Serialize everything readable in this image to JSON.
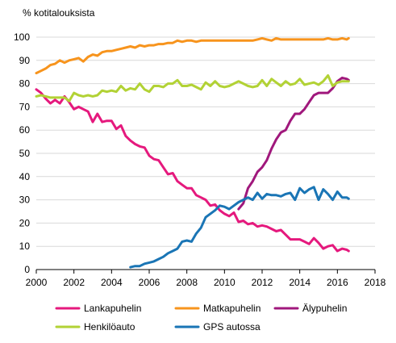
{
  "chart_data": {
    "type": "line",
    "title": "",
    "ylabel": "% kotitalouksista",
    "xlabel": "",
    "xlim": [
      2000,
      2018
    ],
    "ylim": [
      0,
      100
    ],
    "x_ticks": [
      2000,
      2002,
      2004,
      2006,
      2008,
      2010,
      2012,
      2014,
      2016,
      2018
    ],
    "y_ticks": [
      0,
      10,
      20,
      30,
      40,
      50,
      60,
      70,
      80,
      90,
      100
    ],
    "grid": "horizontal",
    "legend_position": "bottom",
    "series": [
      {
        "name": "Lankapuhelin",
        "color": "#e5197d",
        "points": [
          [
            2000.0,
            77.5
          ],
          [
            2000.25,
            76
          ],
          [
            2000.5,
            73.5
          ],
          [
            2000.75,
            71.5
          ],
          [
            2001.0,
            73
          ],
          [
            2001.25,
            71.5
          ],
          [
            2001.5,
            74.5
          ],
          [
            2001.75,
            72
          ],
          [
            2002.0,
            69
          ],
          [
            2002.25,
            70
          ],
          [
            2002.5,
            69
          ],
          [
            2002.75,
            68
          ],
          [
            2003.0,
            63.5
          ],
          [
            2003.25,
            67
          ],
          [
            2003.5,
            63.5
          ],
          [
            2003.75,
            64
          ],
          [
            2004.0,
            64
          ],
          [
            2004.25,
            60.5
          ],
          [
            2004.5,
            62
          ],
          [
            2004.75,
            57.5
          ],
          [
            2005.0,
            55.5
          ],
          [
            2005.25,
            54
          ],
          [
            2005.5,
            53
          ],
          [
            2005.75,
            52.5
          ],
          [
            2006.0,
            49
          ],
          [
            2006.25,
            47.5
          ],
          [
            2006.5,
            47
          ],
          [
            2006.75,
            44
          ],
          [
            2007.0,
            41
          ],
          [
            2007.25,
            41.5
          ],
          [
            2007.5,
            38
          ],
          [
            2007.75,
            36.5
          ],
          [
            2008.0,
            35
          ],
          [
            2008.25,
            35
          ],
          [
            2008.5,
            32
          ],
          [
            2008.75,
            31
          ],
          [
            2009.0,
            30
          ],
          [
            2009.25,
            27.5
          ],
          [
            2009.5,
            28
          ],
          [
            2009.75,
            25.5
          ],
          [
            2010.0,
            24
          ],
          [
            2010.25,
            23
          ],
          [
            2010.5,
            24.5
          ],
          [
            2010.75,
            20.5
          ],
          [
            2011.0,
            21
          ],
          [
            2011.25,
            19.5
          ],
          [
            2011.5,
            20
          ],
          [
            2011.75,
            18.5
          ],
          [
            2012.0,
            19
          ],
          [
            2012.25,
            18.5
          ],
          [
            2012.5,
            17.5
          ],
          [
            2012.75,
            16.5
          ],
          [
            2013.0,
            17
          ],
          [
            2013.25,
            15
          ],
          [
            2013.5,
            13
          ],
          [
            2013.75,
            13
          ],
          [
            2014.0,
            13
          ],
          [
            2014.25,
            12
          ],
          [
            2014.5,
            11
          ],
          [
            2014.75,
            13.5
          ],
          [
            2015.0,
            11.5
          ],
          [
            2015.25,
            9
          ],
          [
            2015.5,
            10
          ],
          [
            2015.75,
            10.5
          ],
          [
            2016.0,
            8
          ],
          [
            2016.25,
            9
          ],
          [
            2016.5,
            8.5
          ],
          [
            2016.6,
            8
          ]
        ]
      },
      {
        "name": "Matkapuhelin",
        "color": "#f7941d",
        "points": [
          [
            2000.0,
            84.5
          ],
          [
            2000.25,
            85.5
          ],
          [
            2000.5,
            86.5
          ],
          [
            2000.75,
            88
          ],
          [
            2001.0,
            88.5
          ],
          [
            2001.25,
            90
          ],
          [
            2001.5,
            89
          ],
          [
            2001.75,
            90
          ],
          [
            2002.0,
            90.5
          ],
          [
            2002.25,
            91
          ],
          [
            2002.5,
            89.5
          ],
          [
            2002.75,
            91.5
          ],
          [
            2003.0,
            92.5
          ],
          [
            2003.25,
            92
          ],
          [
            2003.5,
            93.5
          ],
          [
            2003.75,
            94
          ],
          [
            2004.0,
            94
          ],
          [
            2004.25,
            94.5
          ],
          [
            2004.5,
            95
          ],
          [
            2004.75,
            95.5
          ],
          [
            2005.0,
            96
          ],
          [
            2005.25,
            95.5
          ],
          [
            2005.5,
            96.5
          ],
          [
            2005.75,
            96
          ],
          [
            2006.0,
            96.5
          ],
          [
            2006.25,
            96.5
          ],
          [
            2006.5,
            97
          ],
          [
            2006.75,
            97
          ],
          [
            2007.0,
            97.5
          ],
          [
            2007.25,
            97.5
          ],
          [
            2007.5,
            98.5
          ],
          [
            2007.75,
            98
          ],
          [
            2008.0,
            98.5
          ],
          [
            2008.25,
            98.5
          ],
          [
            2008.5,
            98
          ],
          [
            2008.75,
            98.5
          ],
          [
            2009.0,
            98.5
          ],
          [
            2009.25,
            98.5
          ],
          [
            2009.5,
            98.5
          ],
          [
            2009.75,
            98.5
          ],
          [
            2010.0,
            98.5
          ],
          [
            2010.25,
            98.5
          ],
          [
            2010.5,
            98.5
          ],
          [
            2010.75,
            98.5
          ],
          [
            2011.0,
            98.5
          ],
          [
            2011.25,
            98.5
          ],
          [
            2011.5,
            98.5
          ],
          [
            2011.75,
            99
          ],
          [
            2012.0,
            99.5
          ],
          [
            2012.25,
            99
          ],
          [
            2012.5,
            98.5
          ],
          [
            2012.75,
            99.5
          ],
          [
            2013.0,
            99
          ],
          [
            2013.25,
            99
          ],
          [
            2013.5,
            99
          ],
          [
            2013.75,
            99
          ],
          [
            2014.0,
            99
          ],
          [
            2014.25,
            99
          ],
          [
            2014.5,
            99
          ],
          [
            2014.75,
            99
          ],
          [
            2015.0,
            99
          ],
          [
            2015.25,
            99
          ],
          [
            2015.5,
            99.5
          ],
          [
            2015.75,
            99
          ],
          [
            2016.0,
            99
          ],
          [
            2016.25,
            99.5
          ],
          [
            2016.5,
            99
          ],
          [
            2016.6,
            99.5
          ]
        ]
      },
      {
        "name": "Älypuhelin",
        "color": "#a0187c",
        "points": [
          [
            2010.75,
            26
          ],
          [
            2011.0,
            28.5
          ],
          [
            2011.25,
            35
          ],
          [
            2011.5,
            38
          ],
          [
            2011.75,
            42
          ],
          [
            2012.0,
            44
          ],
          [
            2012.25,
            47
          ],
          [
            2012.5,
            52
          ],
          [
            2012.75,
            56
          ],
          [
            2013.0,
            59
          ],
          [
            2013.25,
            60
          ],
          [
            2013.5,
            64
          ],
          [
            2013.75,
            67
          ],
          [
            2014.0,
            67
          ],
          [
            2014.25,
            69
          ],
          [
            2014.5,
            72
          ],
          [
            2014.75,
            75
          ],
          [
            2015.0,
            76
          ],
          [
            2015.25,
            76
          ],
          [
            2015.5,
            76
          ],
          [
            2015.75,
            78
          ],
          [
            2016.0,
            81
          ],
          [
            2016.25,
            82.5
          ],
          [
            2016.5,
            82
          ],
          [
            2016.6,
            81.5
          ]
        ]
      },
      {
        "name": "Henkilöauto",
        "color": "#b2d235",
        "points": [
          [
            2000.0,
            74.5
          ],
          [
            2000.25,
            75
          ],
          [
            2000.5,
            74.5
          ],
          [
            2000.75,
            74
          ],
          [
            2001.0,
            74
          ],
          [
            2001.25,
            74
          ],
          [
            2001.5,
            74
          ],
          [
            2001.75,
            72.5
          ],
          [
            2002.0,
            76
          ],
          [
            2002.25,
            75
          ],
          [
            2002.5,
            74.5
          ],
          [
            2002.75,
            75
          ],
          [
            2003.0,
            74.5
          ],
          [
            2003.25,
            75
          ],
          [
            2003.5,
            77
          ],
          [
            2003.75,
            76.5
          ],
          [
            2004.0,
            77
          ],
          [
            2004.25,
            76.5
          ],
          [
            2004.5,
            79
          ],
          [
            2004.75,
            77
          ],
          [
            2005.0,
            78
          ],
          [
            2005.25,
            77.5
          ],
          [
            2005.5,
            80
          ],
          [
            2005.75,
            77.5
          ],
          [
            2006.0,
            76.5
          ],
          [
            2006.25,
            79
          ],
          [
            2006.5,
            79
          ],
          [
            2006.75,
            78.5
          ],
          [
            2007.0,
            80
          ],
          [
            2007.25,
            80
          ],
          [
            2007.5,
            81.5
          ],
          [
            2007.75,
            79
          ],
          [
            2008.0,
            79
          ],
          [
            2008.25,
            79.5
          ],
          [
            2008.5,
            78.5
          ],
          [
            2008.75,
            77.5
          ],
          [
            2009.0,
            80.5
          ],
          [
            2009.25,
            79
          ],
          [
            2009.5,
            81
          ],
          [
            2009.75,
            79
          ],
          [
            2010.0,
            78.5
          ],
          [
            2010.25,
            79
          ],
          [
            2010.5,
            80
          ],
          [
            2010.75,
            81
          ],
          [
            2011.0,
            80
          ],
          [
            2011.25,
            79
          ],
          [
            2011.5,
            78.5
          ],
          [
            2011.75,
            79
          ],
          [
            2012.0,
            81.5
          ],
          [
            2012.25,
            79
          ],
          [
            2012.5,
            82
          ],
          [
            2012.75,
            80.5
          ],
          [
            2013.0,
            79
          ],
          [
            2013.25,
            81
          ],
          [
            2013.5,
            79.5
          ],
          [
            2013.75,
            80
          ],
          [
            2014.0,
            82
          ],
          [
            2014.25,
            79.5
          ],
          [
            2014.5,
            80
          ],
          [
            2014.75,
            80.5
          ],
          [
            2015.0,
            79.5
          ],
          [
            2015.25,
            81
          ],
          [
            2015.5,
            83.5
          ],
          [
            2015.75,
            79
          ],
          [
            2016.0,
            80.5
          ],
          [
            2016.25,
            81
          ],
          [
            2016.5,
            81
          ],
          [
            2016.6,
            81
          ]
        ]
      },
      {
        "name": "GPS autossa",
        "color": "#1a75b5",
        "points": [
          [
            2005.0,
            1
          ],
          [
            2005.25,
            1.5
          ],
          [
            2005.5,
            1.5
          ],
          [
            2005.75,
            2.5
          ],
          [
            2006.0,
            3
          ],
          [
            2006.25,
            3.5
          ],
          [
            2006.5,
            4.5
          ],
          [
            2006.75,
            5.5
          ],
          [
            2007.0,
            7
          ],
          [
            2007.25,
            8
          ],
          [
            2007.5,
            9
          ],
          [
            2007.75,
            12
          ],
          [
            2008.0,
            12.5
          ],
          [
            2008.25,
            12
          ],
          [
            2008.5,
            15.5
          ],
          [
            2008.75,
            18
          ],
          [
            2009.0,
            22.5
          ],
          [
            2009.25,
            24
          ],
          [
            2009.5,
            25.5
          ],
          [
            2009.75,
            27.5
          ],
          [
            2010.0,
            27
          ],
          [
            2010.25,
            26
          ],
          [
            2010.5,
            27.5
          ],
          [
            2010.75,
            29
          ],
          [
            2011.0,
            30
          ],
          [
            2011.25,
            31
          ],
          [
            2011.5,
            30
          ],
          [
            2011.75,
            33
          ],
          [
            2012.0,
            30.5
          ],
          [
            2012.25,
            32.5
          ],
          [
            2012.5,
            32
          ],
          [
            2012.75,
            32
          ],
          [
            2013.0,
            31.5
          ],
          [
            2013.25,
            32.5
          ],
          [
            2013.5,
            33
          ],
          [
            2013.75,
            30
          ],
          [
            2014.0,
            35
          ],
          [
            2014.25,
            33
          ],
          [
            2014.5,
            34.5
          ],
          [
            2014.75,
            35.5
          ],
          [
            2015.0,
            30
          ],
          [
            2015.25,
            34.5
          ],
          [
            2015.5,
            32.5
          ],
          [
            2015.75,
            30
          ],
          [
            2016.0,
            33.5
          ],
          [
            2016.25,
            31
          ],
          [
            2016.5,
            31
          ],
          [
            2016.6,
            30.5
          ]
        ]
      }
    ],
    "legend": [
      {
        "name": "Lankapuhelin",
        "color": "#e5197d"
      },
      {
        "name": "Matkapuhelin",
        "color": "#f7941d"
      },
      {
        "name": "Älypuhelin",
        "color": "#a0187c"
      },
      {
        "name": "Henkilöauto",
        "color": "#b2d235"
      },
      {
        "name": "GPS autossa",
        "color": "#1a75b5"
      }
    ],
    "colors": {
      "grid": "#d9d9d9",
      "axis": "#000000"
    }
  }
}
